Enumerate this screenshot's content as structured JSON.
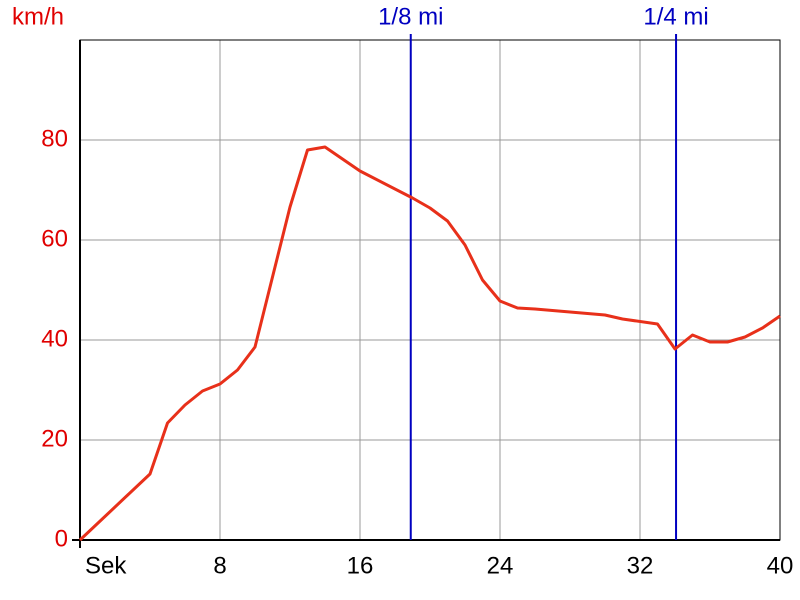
{
  "chart_data": {
    "type": "line",
    "y_label": "km/h",
    "x": [
      0,
      4,
      5,
      6,
      7,
      8,
      9,
      10,
      12,
      13,
      14,
      16,
      19,
      20,
      21,
      22,
      23,
      24,
      25,
      26,
      28,
      30,
      31,
      33,
      34,
      35,
      36,
      37,
      38,
      39,
      40
    ],
    "series": [
      {
        "color": "#e8301a",
        "values": [
          0,
          13.2,
          23.4,
          27,
          29.8,
          31.2,
          34,
          38.6,
          66.6,
          78,
          78.6,
          73.8,
          68.4,
          66.4,
          63.8,
          59,
          52,
          47.8,
          46.4,
          46.2,
          45.6,
          45,
          44.2,
          43.2,
          38.2,
          41,
          39.6,
          39.6,
          40.6,
          42.4,
          44.8
        ]
      }
    ],
    "markers": [
      {
        "label": "1/8 mi",
        "x": 18.9,
        "color": "#0000c0"
      },
      {
        "label": "1/4 mi",
        "x": 34.06,
        "color": "#0000c0"
      }
    ],
    "xlim": [
      0,
      40
    ],
    "xticks": [
      {
        "value": 0,
        "label": "Sek"
      },
      8,
      16,
      24,
      32,
      40
    ],
    "ylim": [
      0,
      100
    ],
    "yticks": [
      0,
      20,
      40,
      60,
      80
    ],
    "grid": true,
    "ytick_color": "#e00000"
  }
}
